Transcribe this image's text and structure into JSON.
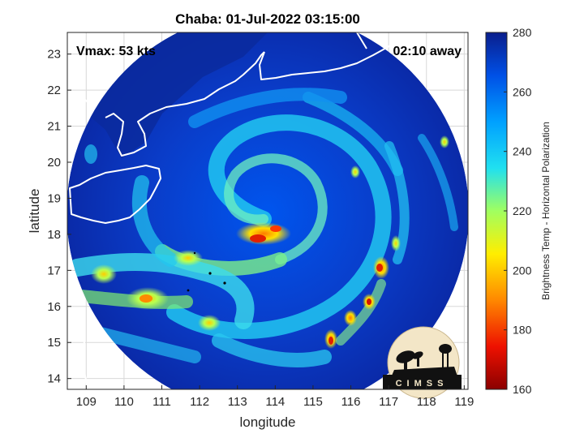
{
  "title": "Chaba: 01-Jul-2022 03:15:00",
  "vmax_label": "Vmax: 53 kts",
  "away_label": "02:10 away",
  "xlabel": "longitude",
  "ylabel": "latitude",
  "colorbar_label": "Brightness Temp - Horizontal Polarization",
  "logo_text": "CIMSS",
  "colors": {
    "colormap": [
      "#0a1e8c",
      "#0050e6",
      "#00a0ff",
      "#20e0f0",
      "#a0ff60",
      "#ffee00",
      "#ff8800",
      "#ee1100",
      "#8b0000"
    ],
    "coastline": "#ffffff",
    "frame": "#262626"
  },
  "map": {
    "lon_range": [
      108.5,
      119.1
    ],
    "lat_range": [
      13.7,
      23.6
    ],
    "x_ticks": [
      109,
      110,
      111,
      112,
      113,
      114,
      115,
      116,
      117,
      118,
      119
    ],
    "y_ticks": [
      14,
      15,
      16,
      17,
      18,
      19,
      20,
      21,
      22,
      23
    ],
    "colorbar_ticks": [
      280,
      260,
      240,
      220,
      200,
      180,
      160
    ],
    "colorbar_range": [
      160,
      280
    ],
    "storm_center": {
      "lon": 113.2,
      "lat": 18.7
    }
  }
}
